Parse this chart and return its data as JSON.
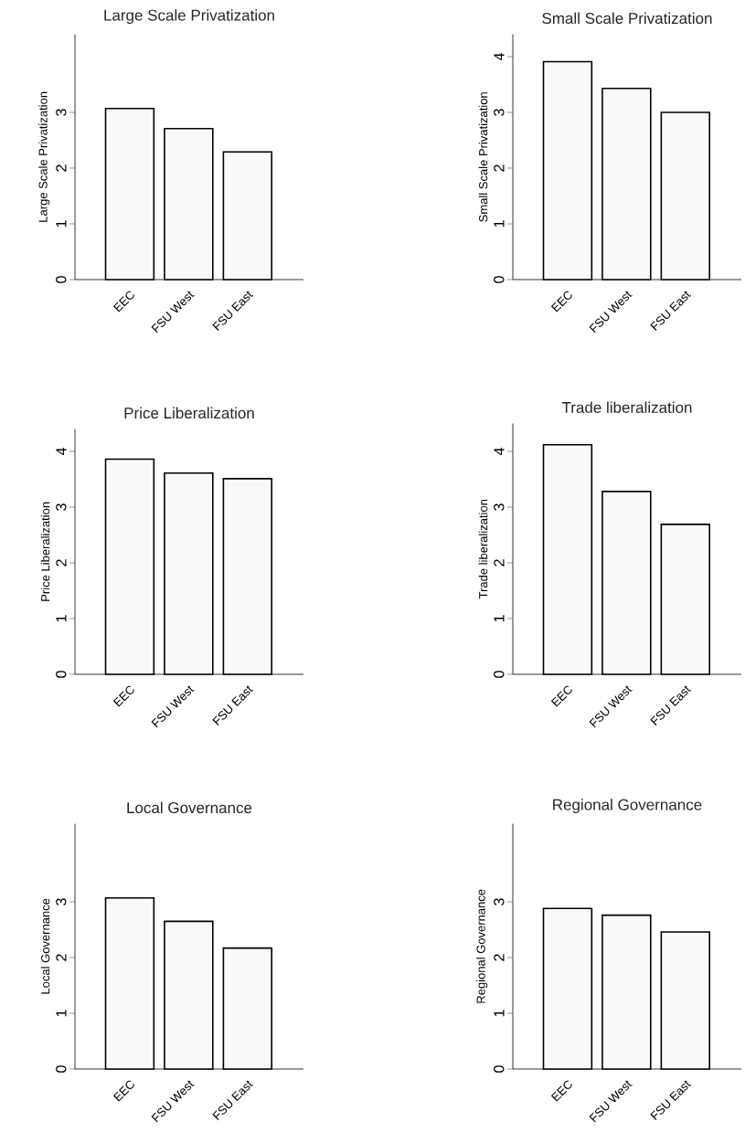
{
  "chart_data": [
    {
      "type": "bar",
      "title": "Large Scale Privatization",
      "ylabel": "Large Scale Privatization",
      "categories": [
        "EEC",
        "FSU West",
        "FSU East"
      ],
      "values": [
        3.07,
        2.71,
        2.29
      ],
      "color": "#f9f9f9",
      "ylim": [
        0,
        4.4
      ],
      "yticks": [
        0,
        1,
        2,
        3
      ]
    },
    {
      "type": "bar",
      "title": "Small Scale Privatization",
      "ylabel": "Small Scale Privatization",
      "categories": [
        "EEC",
        "FSU West",
        "FSU East"
      ],
      "values": [
        3.91,
        3.43,
        3.0
      ],
      "color": "#f9f9f9",
      "ylim": [
        0,
        4.4
      ],
      "yticks": [
        0,
        1,
        2,
        3,
        4
      ]
    },
    {
      "type": "bar",
      "title": "Price Liberalization",
      "ylabel": "Price Liberalization",
      "categories": [
        "EEC",
        "FSU West",
        "FSU East"
      ],
      "values": [
        3.86,
        3.61,
        3.51
      ],
      "color": "#f9f9f9",
      "ylim": [
        0,
        4.4
      ],
      "yticks": [
        0,
        1,
        2,
        3,
        4
      ]
    },
    {
      "type": "bar",
      "title": "Trade liberalization",
      "ylabel": "Trade liberalization",
      "categories": [
        "EEC",
        "FSU West",
        "FSU East"
      ],
      "values": [
        4.12,
        3.28,
        2.69
      ],
      "color": "#f9f9f9",
      "ylim": [
        0,
        4.5
      ],
      "yticks": [
        0,
        1,
        2,
        3,
        4
      ]
    },
    {
      "type": "bar",
      "title": "Local Governance",
      "ylabel": "Local Governance",
      "categories": [
        "EEC",
        "FSU West",
        "FSU East"
      ],
      "values": [
        3.07,
        2.65,
        2.17
      ],
      "color": "#f9f9f9",
      "ylim": [
        0,
        4.4
      ],
      "yticks": [
        0,
        1,
        2,
        3
      ]
    },
    {
      "type": "bar",
      "title": "Regional Governance",
      "ylabel": "Regional Governance",
      "categories": [
        "EEC",
        "FSU West",
        "FSU East"
      ],
      "values": [
        2.88,
        2.76,
        2.46
      ],
      "color": "#f9f9f9",
      "ylim": [
        0,
        4.4
      ],
      "yticks": [
        0,
        1,
        2,
        3
      ]
    }
  ]
}
